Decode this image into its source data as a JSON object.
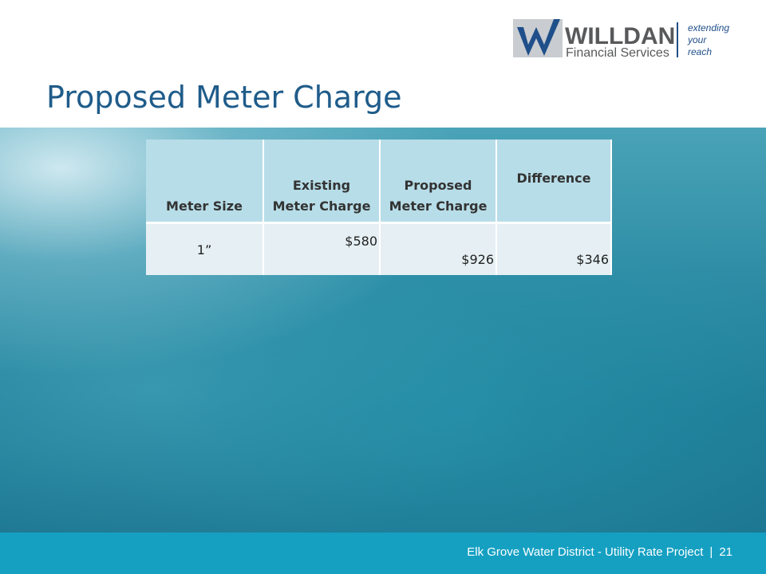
{
  "header": {
    "logo": {
      "name": "WILLDAN",
      "subtitle": "Financial Services",
      "tagline": [
        "extending",
        "your",
        "reach"
      ]
    }
  },
  "title": "Proposed Meter Charge",
  "table": {
    "columns": [
      "Meter Size",
      "Existing Meter Charge",
      "Proposed Meter Charge",
      "Difference"
    ],
    "rows": [
      [
        "1”",
        "$580",
        "$926",
        "$346"
      ]
    ]
  },
  "footer": {
    "text": "Elk Grove Water District - Utility Rate Project",
    "separator": "|",
    "page": "21"
  }
}
